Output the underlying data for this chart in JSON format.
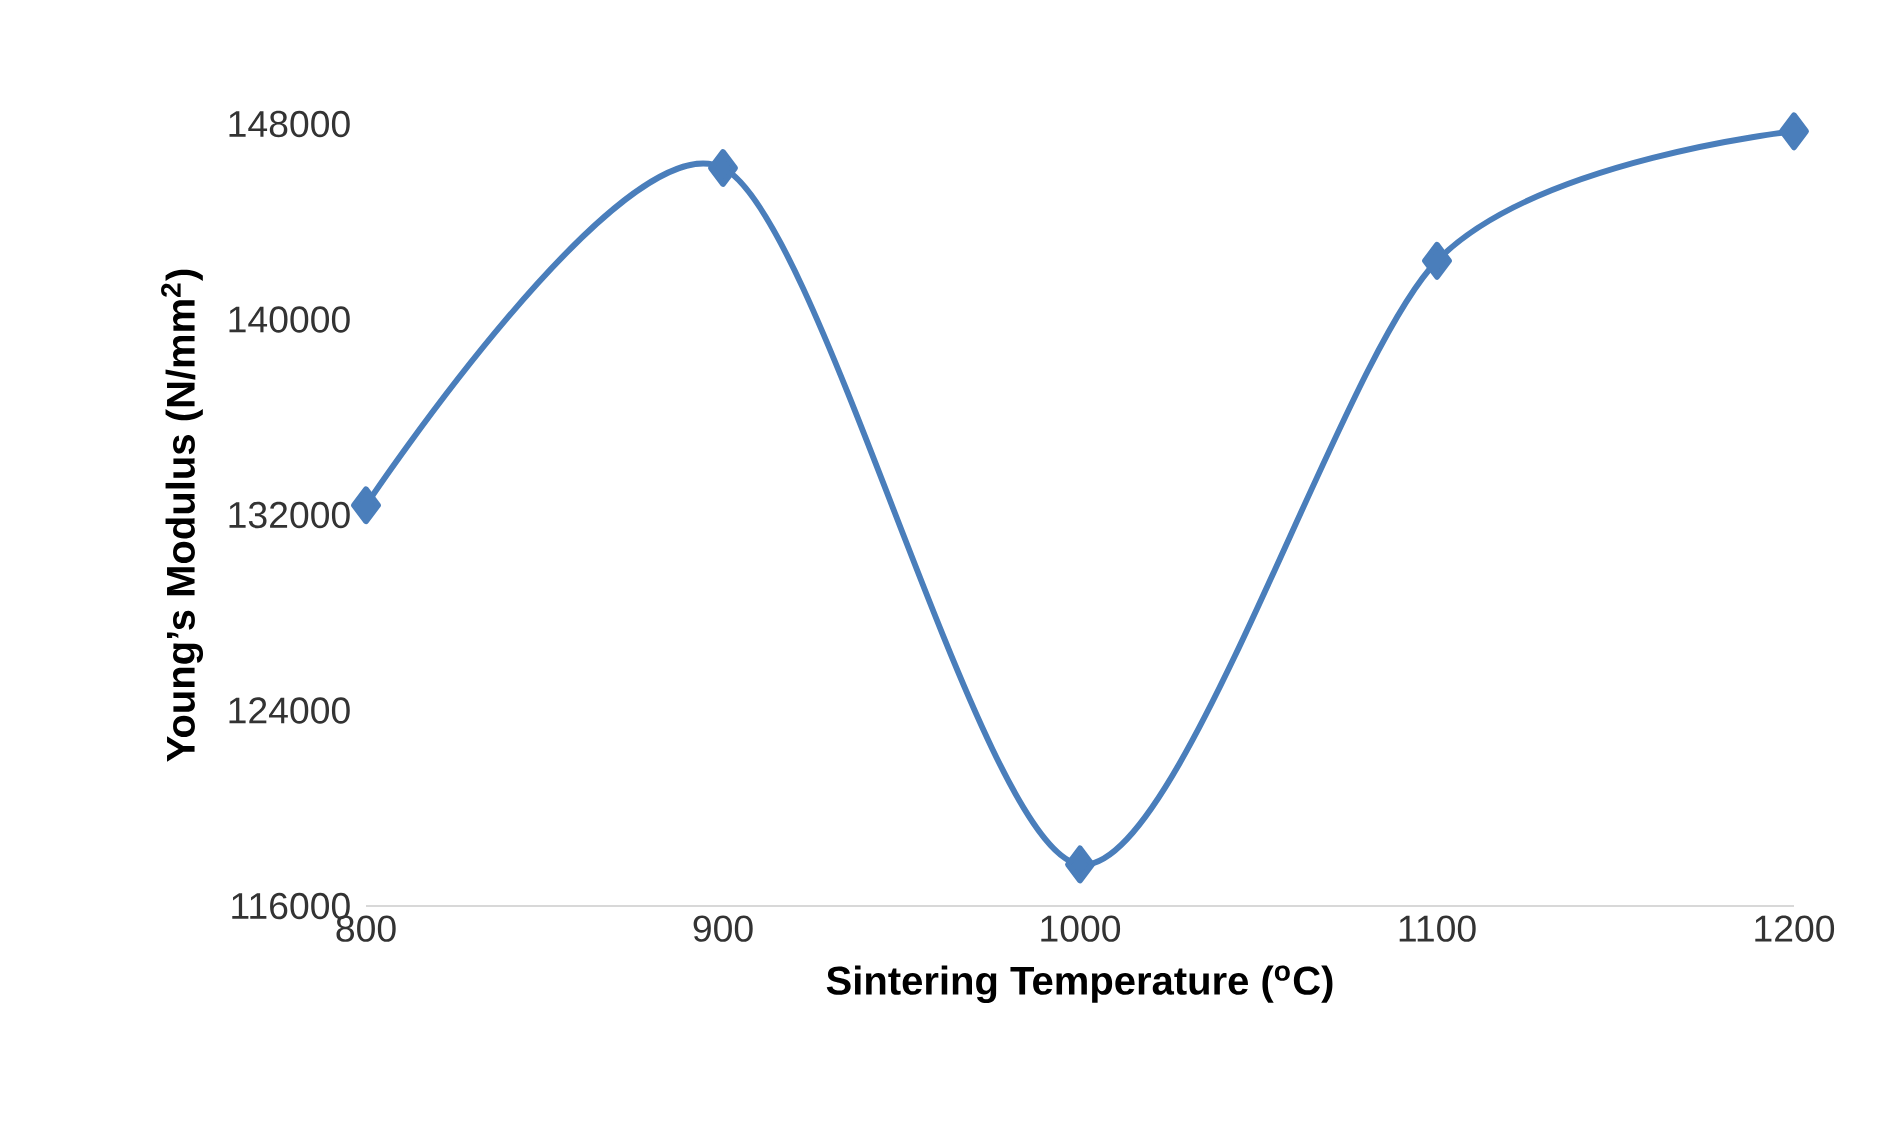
{
  "chart_data": {
    "type": "line",
    "xlabel": "Sintering Temperature ($^{o}$C)",
    "ylabel": "Young’s Modulus (N/mm$^{2}$)",
    "x": [
      800,
      900,
      1000,
      1100,
      1200
    ],
    "series": [
      {
        "color": "#4a7ebb",
        "values": [
          132400,
          146200,
          117700,
          142400,
          147700
        ]
      }
    ],
    "xlim": [
      800,
      1200
    ],
    "xticks": [
      800,
      900,
      1000,
      1100,
      1200
    ],
    "ylim": [
      116000,
      148000
    ],
    "yticks": [
      116000,
      124000,
      132000,
      140000,
      148000
    ],
    "marker": "diamond",
    "line_style": "solid",
    "grid": false
  }
}
